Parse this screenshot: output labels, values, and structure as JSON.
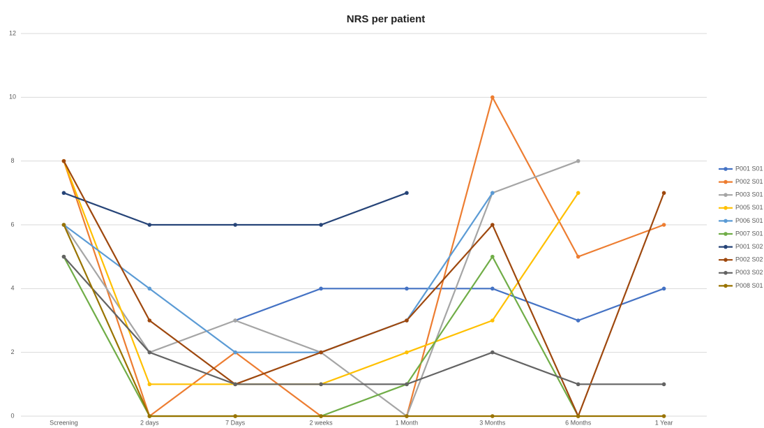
{
  "chart_data": {
    "type": "line",
    "title": "NRS per patient",
    "categories": [
      "Screening",
      "2 days",
      "7 Days",
      "2 weeks",
      "1 Month",
      "3 Months",
      "6 Months",
      "1 Year"
    ],
    "ylim": [
      0,
      12
    ],
    "yticks": [
      0,
      2,
      4,
      6,
      8,
      10,
      12
    ],
    "grid": true,
    "legend": "right",
    "series": [
      {
        "name": "P001 S01",
        "color": "#4472c4",
        "values": [
          null,
          null,
          3,
          4,
          4,
          4,
          3,
          4
        ]
      },
      {
        "name": "P002 S01",
        "color": "#ed7d31",
        "values": [
          8,
          0,
          2,
          0,
          0,
          10,
          5,
          6
        ]
      },
      {
        "name": "P003 S01",
        "color": "#a5a5a5",
        "values": [
          6,
          2,
          3,
          2,
          0,
          7,
          8,
          null
        ]
      },
      {
        "name": "P005 S01",
        "color": "#ffc000",
        "values": [
          8,
          1,
          1,
          1,
          2,
          3,
          7,
          null
        ]
      },
      {
        "name": "P006 S01",
        "color": "#5b9bd5",
        "values": [
          6,
          4,
          2,
          2,
          3,
          7,
          null,
          null
        ]
      },
      {
        "name": "P007 S01",
        "color": "#70ad47",
        "values": [
          5,
          0,
          0,
          0,
          1,
          5,
          0,
          null
        ]
      },
      {
        "name": "P001 S02",
        "color": "#264478",
        "values": [
          7,
          6,
          6,
          6,
          7,
          null,
          null,
          null
        ]
      },
      {
        "name": "P002 S02",
        "color": "#9e480e",
        "values": [
          8,
          3,
          1,
          2,
          3,
          6,
          0,
          7
        ]
      },
      {
        "name": "P003 S02",
        "color": "#636363",
        "values": [
          5,
          2,
          1,
          1,
          1,
          2,
          1,
          1
        ]
      },
      {
        "name": "P008 S01",
        "color": "#997300",
        "values": [
          6,
          0,
          0,
          0,
          0,
          0,
          0,
          0
        ]
      }
    ]
  }
}
